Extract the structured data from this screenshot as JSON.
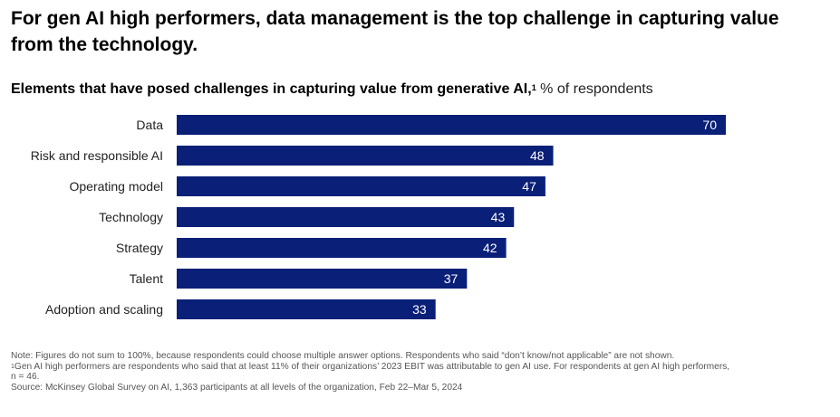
{
  "headline": "For gen AI high performers, data management is the top challenge in capturing value from the technology.",
  "subtitle": {
    "main": "Elements that have posed challenges in capturing value from generative AI,",
    "footnote_mark": "1",
    "unit": "% of respondents"
  },
  "chart_data": {
    "type": "bar",
    "orientation": "horizontal",
    "title": "Elements that have posed challenges in capturing value from generative AI",
    "unit": "% of respondents",
    "categories": [
      "Data",
      "Risk and responsible AI",
      "Operating model",
      "Technology",
      "Strategy",
      "Talent",
      "Adoption and scaling"
    ],
    "values": [
      70,
      48,
      47,
      43,
      42,
      37,
      33
    ],
    "data_labels": [
      "70",
      "48",
      "47",
      "43",
      "42",
      "37",
      "33"
    ],
    "xlim": [
      0,
      100
    ],
    "grid": false,
    "bar_color": "#0a1f78"
  },
  "notes": {
    "note": "Note: Figures do not sum to 100%, because respondents could choose multiple answer options. Respondents who said “don’t know/not applicable” are not shown.",
    "footnote_mark": "1",
    "footnote": "Gen AI high performers are respondents who said that at least 11% of their organizations’ 2023 EBIT was attributable to gen AI use. For respondents at gen AI high performers, n = 46.",
    "source": "Source: McKinsey Global Survey on AI, 1,363 participants at all levels of the organization, Feb 22–Mar 5, 2024"
  }
}
